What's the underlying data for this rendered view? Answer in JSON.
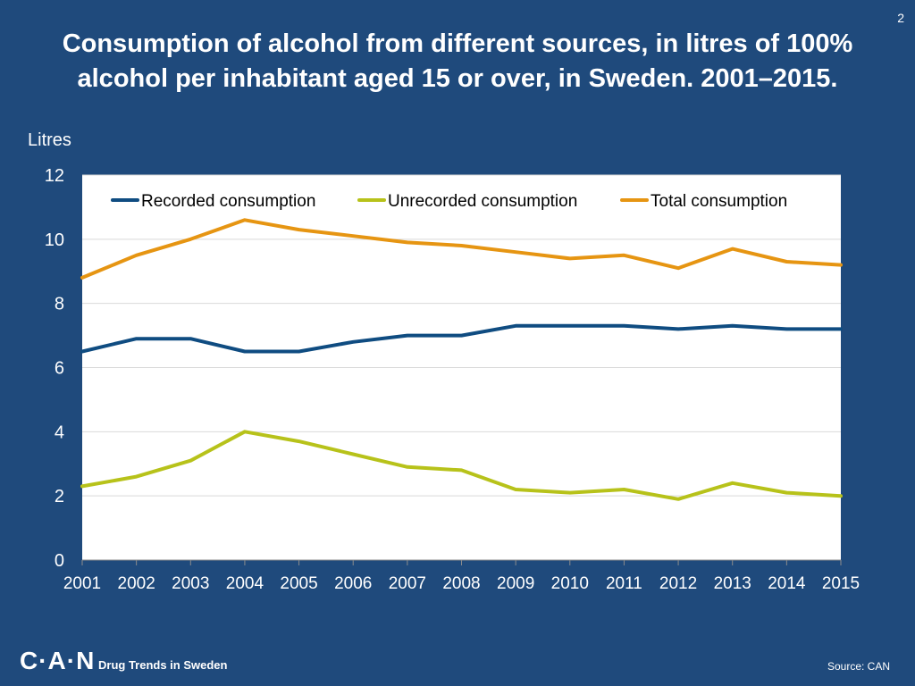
{
  "slide": {
    "number": "2"
  },
  "footer": {
    "logo": "C·A·N",
    "tagline": "Drug Trends in Sweden",
    "source": "Source: CAN"
  },
  "colors": {
    "background": "#1f4a7c",
    "plot_background": "#ffffff",
    "gridline": "#d9d9d9",
    "recorded": "#0f4c81",
    "unrecorded": "#b7c21a",
    "total": "#e69512"
  },
  "chart_data": {
    "type": "line",
    "title": "Consumption of alcohol from different sources, in litres of 100% alcohol per inhabitant aged 15 or over, in Sweden. 2001–2015.",
    "xlabel": "",
    "ylabel": "Litres",
    "ylim": [
      0,
      12
    ],
    "yticks": [
      "0",
      "2",
      "4",
      "6",
      "8",
      "10",
      "12"
    ],
    "x": [
      "2001",
      "2002",
      "2003",
      "2004",
      "2005",
      "2006",
      "2007",
      "2008",
      "2009",
      "2010",
      "2011",
      "2012",
      "2013",
      "2014",
      "2015"
    ],
    "legend_position": "top",
    "grid": true,
    "series": [
      {
        "name": "Recorded consumption",
        "color": "#0f4c81",
        "values": [
          6.5,
          6.9,
          6.9,
          6.5,
          6.5,
          6.8,
          7.0,
          7.0,
          7.3,
          7.3,
          7.3,
          7.2,
          7.3,
          7.2,
          7.2
        ]
      },
      {
        "name": "Unrecorded consumption",
        "color": "#b7c21a",
        "values": [
          2.3,
          2.6,
          3.1,
          4.0,
          3.7,
          3.3,
          2.9,
          2.8,
          2.2,
          2.1,
          2.2,
          1.9,
          2.4,
          2.1,
          2.0
        ]
      },
      {
        "name": "Total consumption",
        "color": "#e69512",
        "values": [
          8.8,
          9.5,
          10.0,
          10.6,
          10.3,
          10.1,
          9.9,
          9.8,
          9.6,
          9.4,
          9.5,
          9.1,
          9.7,
          9.3,
          9.2
        ]
      }
    ]
  }
}
